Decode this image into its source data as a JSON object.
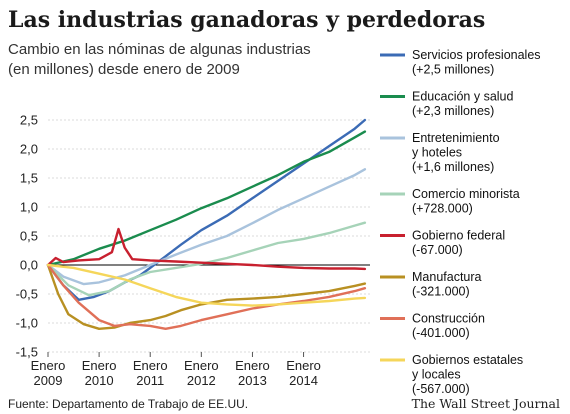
{
  "chart_data": {
    "type": "line",
    "title": "Las industrias ganadoras y perdedoras",
    "subtitle_lines": [
      "Cambio en las nóminas de algunas industrias",
      "(en millones) desde enero de 2009"
    ],
    "ylim": [
      -1.5,
      2.5
    ],
    "xlim": [
      2009.0,
      2015.3
    ],
    "y_ticks": [
      {
        "value": 2.5,
        "label": "2,5"
      },
      {
        "value": 2.0,
        "label": "2,0"
      },
      {
        "value": 1.5,
        "label": "1,5"
      },
      {
        "value": 1.0,
        "label": "1,0"
      },
      {
        "value": 0.5,
        "label": "0,5"
      },
      {
        "value": 0.0,
        "label": "0,0"
      },
      {
        "value": -0.5,
        "label": "-0,5"
      },
      {
        "value": -1.0,
        "label": "-1,0"
      },
      {
        "value": -1.5,
        "label": "-1,5"
      }
    ],
    "x_ticks": [
      {
        "value": 2009,
        "line1": "Enero",
        "line2": "2009"
      },
      {
        "value": 2010,
        "line1": "Enero",
        "line2": "2010"
      },
      {
        "value": 2011,
        "line1": "Enero",
        "line2": "2011"
      },
      {
        "value": 2012,
        "line1": "Enero",
        "line2": "2012"
      },
      {
        "value": 2013,
        "line1": "Enero",
        "line2": "2013"
      },
      {
        "value": 2014,
        "line1": "Enero",
        "line2": "2014"
      }
    ],
    "grid": true,
    "legend_position": "right",
    "series": [
      {
        "name": "Servicios profesionales",
        "value_label": "(+2,5 millones)",
        "color": "#3b6bb5",
        "points": [
          [
            2009.0,
            0.0
          ],
          [
            2009.3,
            -0.35
          ],
          [
            2009.6,
            -0.6
          ],
          [
            2009.9,
            -0.55
          ],
          [
            2010.2,
            -0.45
          ],
          [
            2010.5,
            -0.3
          ],
          [
            2010.8,
            -0.18
          ],
          [
            2011.0,
            -0.05
          ],
          [
            2011.3,
            0.15
          ],
          [
            2011.6,
            0.35
          ],
          [
            2012.0,
            0.6
          ],
          [
            2012.5,
            0.85
          ],
          [
            2013.0,
            1.15
          ],
          [
            2013.5,
            1.45
          ],
          [
            2014.0,
            1.75
          ],
          [
            2014.5,
            2.05
          ],
          [
            2015.0,
            2.35
          ],
          [
            2015.2,
            2.5
          ]
        ]
      },
      {
        "name": "Educación y salud",
        "value_label": "(+2,3 millones)",
        "color": "#1a8c4e",
        "points": [
          [
            2009.0,
            0.0
          ],
          [
            2009.5,
            0.1
          ],
          [
            2010.0,
            0.28
          ],
          [
            2010.5,
            0.42
          ],
          [
            2011.0,
            0.6
          ],
          [
            2011.5,
            0.78
          ],
          [
            2012.0,
            0.98
          ],
          [
            2012.5,
            1.15
          ],
          [
            2013.0,
            1.35
          ],
          [
            2013.5,
            1.55
          ],
          [
            2014.0,
            1.78
          ],
          [
            2014.5,
            1.95
          ],
          [
            2015.0,
            2.2
          ],
          [
            2015.2,
            2.3
          ]
        ]
      },
      {
        "name": "Entretenimiento y hoteles",
        "value_label": "(+1,6 millones)",
        "color": "#a9c3dd",
        "points": [
          [
            2009.0,
            0.0
          ],
          [
            2009.3,
            -0.2
          ],
          [
            2009.7,
            -0.33
          ],
          [
            2010.0,
            -0.3
          ],
          [
            2010.5,
            -0.18
          ],
          [
            2011.0,
            0.0
          ],
          [
            2011.5,
            0.18
          ],
          [
            2012.0,
            0.35
          ],
          [
            2012.5,
            0.5
          ],
          [
            2013.0,
            0.72
          ],
          [
            2013.5,
            0.95
          ],
          [
            2014.0,
            1.15
          ],
          [
            2014.5,
            1.35
          ],
          [
            2015.0,
            1.55
          ],
          [
            2015.2,
            1.65
          ]
        ]
      },
      {
        "name": "Comercio minorista",
        "value_label": "(+728.000)",
        "color": "#a6d3b8",
        "points": [
          [
            2009.0,
            0.0
          ],
          [
            2009.4,
            -0.35
          ],
          [
            2009.8,
            -0.52
          ],
          [
            2010.2,
            -0.45
          ],
          [
            2010.6,
            -0.25
          ],
          [
            2011.0,
            -0.12
          ],
          [
            2011.5,
            -0.05
          ],
          [
            2012.0,
            0.02
          ],
          [
            2012.5,
            0.12
          ],
          [
            2013.0,
            0.25
          ],
          [
            2013.5,
            0.38
          ],
          [
            2014.0,
            0.45
          ],
          [
            2014.5,
            0.55
          ],
          [
            2015.0,
            0.68
          ],
          [
            2015.2,
            0.73
          ]
        ]
      },
      {
        "name": "Gobierno federal",
        "value_label": "(-67.000)",
        "color": "#c8202f",
        "points": [
          [
            2009.0,
            0.0
          ],
          [
            2009.15,
            0.12
          ],
          [
            2009.3,
            0.05
          ],
          [
            2009.6,
            0.08
          ],
          [
            2010.0,
            0.1
          ],
          [
            2010.25,
            0.22
          ],
          [
            2010.38,
            0.62
          ],
          [
            2010.5,
            0.3
          ],
          [
            2010.65,
            0.1
          ],
          [
            2011.0,
            0.08
          ],
          [
            2011.5,
            0.06
          ],
          [
            2012.0,
            0.04
          ],
          [
            2012.5,
            0.02
          ],
          [
            2013.0,
            0.0
          ],
          [
            2013.5,
            -0.03
          ],
          [
            2014.0,
            -0.05
          ],
          [
            2014.5,
            -0.06
          ],
          [
            2015.0,
            -0.06
          ],
          [
            2015.2,
            -0.067
          ]
        ]
      },
      {
        "name": "Manufactura",
        "value_label": "(-321.000)",
        "color": "#b89022",
        "points": [
          [
            2009.0,
            0.0
          ],
          [
            2009.2,
            -0.5
          ],
          [
            2009.4,
            -0.85
          ],
          [
            2009.7,
            -1.02
          ],
          [
            2010.0,
            -1.1
          ],
          [
            2010.3,
            -1.08
          ],
          [
            2010.6,
            -1.0
          ],
          [
            2011.0,
            -0.95
          ],
          [
            2011.3,
            -0.88
          ],
          [
            2011.6,
            -0.78
          ],
          [
            2012.0,
            -0.68
          ],
          [
            2012.5,
            -0.6
          ],
          [
            2013.0,
            -0.58
          ],
          [
            2013.5,
            -0.55
          ],
          [
            2014.0,
            -0.5
          ],
          [
            2014.5,
            -0.45
          ],
          [
            2015.0,
            -0.36
          ],
          [
            2015.2,
            -0.32
          ]
        ]
      },
      {
        "name": "Construcción",
        "value_label": "(-401.000)",
        "color": "#e07058",
        "points": [
          [
            2009.0,
            0.0
          ],
          [
            2009.3,
            -0.35
          ],
          [
            2009.6,
            -0.65
          ],
          [
            2010.0,
            -0.95
          ],
          [
            2010.3,
            -1.05
          ],
          [
            2010.6,
            -1.02
          ],
          [
            2011.0,
            -1.05
          ],
          [
            2011.3,
            -1.1
          ],
          [
            2011.6,
            -1.05
          ],
          [
            2012.0,
            -0.95
          ],
          [
            2012.5,
            -0.85
          ],
          [
            2013.0,
            -0.75
          ],
          [
            2013.5,
            -0.68
          ],
          [
            2014.0,
            -0.62
          ],
          [
            2014.5,
            -0.55
          ],
          [
            2015.0,
            -0.45
          ],
          [
            2015.2,
            -0.4
          ]
        ]
      },
      {
        "name": "Gobiernos estatales y locales",
        "value_label": "(-567.000)",
        "color": "#f5d65a",
        "points": [
          [
            2009.0,
            0.0
          ],
          [
            2009.5,
            -0.05
          ],
          [
            2010.0,
            -0.15
          ],
          [
            2010.5,
            -0.25
          ],
          [
            2011.0,
            -0.4
          ],
          [
            2011.5,
            -0.55
          ],
          [
            2012.0,
            -0.65
          ],
          [
            2012.5,
            -0.68
          ],
          [
            2013.0,
            -0.7
          ],
          [
            2013.5,
            -0.68
          ],
          [
            2014.0,
            -0.65
          ],
          [
            2014.5,
            -0.62
          ],
          [
            2015.0,
            -0.58
          ],
          [
            2015.2,
            -0.567
          ]
        ]
      }
    ],
    "legend_items": [
      {
        "name": "Servicios profesionales",
        "lines": [
          "Servicios profesionales",
          "(+2,5 millones)"
        ],
        "color": "#3b6bb5"
      },
      {
        "name": "Educación y salud",
        "lines": [
          "Educación y salud",
          "(+2,3 millones)"
        ],
        "color": "#1a8c4e"
      },
      {
        "name": "Entretenimiento y hoteles",
        "lines": [
          "Entretenimiento",
          "y hoteles",
          "(+1,6 millones)"
        ],
        "color": "#a9c3dd"
      },
      {
        "name": "Comercio minorista",
        "lines": [
          "Comercio minorista",
          "(+728.000)"
        ],
        "color": "#a6d3b8"
      },
      {
        "name": "Gobierno federal",
        "lines": [
          "Gobierno federal",
          "(-67.000)"
        ],
        "color": "#c8202f"
      },
      {
        "name": "Manufactura",
        "lines": [
          "Manufactura",
          "(-321.000)"
        ],
        "color": "#b89022"
      },
      {
        "name": "Construcción",
        "lines": [
          "Construcción",
          "(-401.000)"
        ],
        "color": "#e07058"
      },
      {
        "name": "Gobiernos estatales y locales",
        "lines": [
          "Gobiernos estatales",
          "y locales",
          "(-567.000)"
        ],
        "color": "#f5d65a"
      }
    ]
  },
  "footer": {
    "source": "Fuente: Departamento de Trabajo de EE.UU.",
    "publisher": "The Wall Street Journal"
  }
}
